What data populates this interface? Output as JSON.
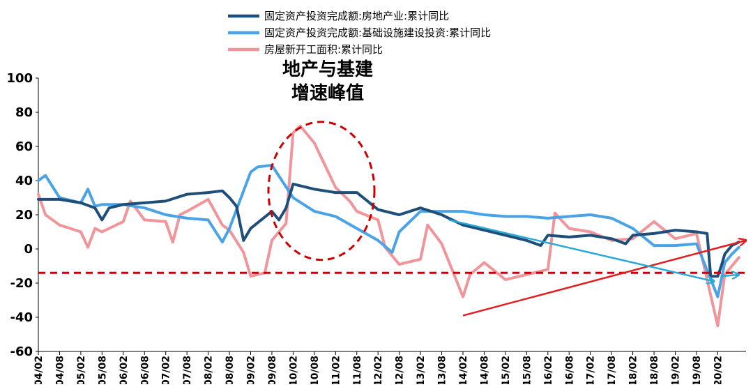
{
  "chart_data": {
    "type": "line",
    "legend": {
      "placement": "top",
      "entries": [
        {
          "label": "固定资产投资完成额:房地产业:累计同比",
          "color": "#1f4e79"
        },
        {
          "label": "固定资产投资完成额:基础设施建设投资:累计同比",
          "color": "#4aa3e6"
        },
        {
          "label": "房屋新开工面积:累计同比",
          "color": "#f0959a"
        }
      ]
    },
    "ylim": [
      -60,
      100
    ],
    "yticks": [
      -60,
      -40,
      -20,
      0,
      20,
      40,
      60,
      80,
      100
    ],
    "xlim": [
      "2004/02",
      "2020/10"
    ],
    "x_tick_labels": [
      "2004/02",
      "2004/08",
      "2005/02",
      "2005/08",
      "2006/02",
      "2006/08",
      "2007/02",
      "2007/08",
      "2008/02",
      "2008/08",
      "2009/02",
      "2009/08",
      "2010/02",
      "2010/08",
      "2011/02",
      "2011/08",
      "2012/02",
      "2012/08",
      "2013/02",
      "2013/08",
      "2014/02",
      "2014/08",
      "2015/02",
      "2015/08",
      "2016/02",
      "2016/08",
      "2017/02",
      "2017/08",
      "2018/02",
      "2018/08",
      "2019/02",
      "2019/08",
      "2020/02"
    ],
    "series": [
      {
        "name": "固定资产投资完成额:房地产业:累计同比",
        "color": "#1f4e79",
        "points": [
          [
            "2004/02",
            29
          ],
          [
            "2004/08",
            29
          ],
          [
            "2005/02",
            27
          ],
          [
            "2005/06",
            24
          ],
          [
            "2005/08",
            17
          ],
          [
            "2005/10",
            24
          ],
          [
            "2006/02",
            26
          ],
          [
            "2006/08",
            27
          ],
          [
            "2007/02",
            28
          ],
          [
            "2007/08",
            32
          ],
          [
            "2008/02",
            33
          ],
          [
            "2008/06",
            34
          ],
          [
            "2008/08",
            30
          ],
          [
            "2008/10",
            25
          ],
          [
            "2008/12",
            5
          ],
          [
            "2009/02",
            12
          ],
          [
            "2009/08",
            22
          ],
          [
            "2009/10",
            17
          ],
          [
            "2009/12",
            24
          ],
          [
            "2010/02",
            38
          ],
          [
            "2010/08",
            35
          ],
          [
            "2011/02",
            33
          ],
          [
            "2011/08",
            33
          ],
          [
            "2012/02",
            23
          ],
          [
            "2012/08",
            20
          ],
          [
            "2013/02",
            24
          ],
          [
            "2013/08",
            20
          ],
          [
            "2014/02",
            14
          ],
          [
            "2014/08",
            11
          ],
          [
            "2015/02",
            8
          ],
          [
            "2015/08",
            5
          ],
          [
            "2015/12",
            2
          ],
          [
            "2016/02",
            8
          ],
          [
            "2016/08",
            7
          ],
          [
            "2017/02",
            8
          ],
          [
            "2017/08",
            6
          ],
          [
            "2017/12",
            3
          ],
          [
            "2018/02",
            8
          ],
          [
            "2018/08",
            9
          ],
          [
            "2019/02",
            11
          ],
          [
            "2019/08",
            10
          ],
          [
            "2019/11",
            9
          ],
          [
            "2019/12",
            -16
          ],
          [
            "2020/02",
            -16
          ],
          [
            "2020/03",
            -10
          ],
          [
            "2020/04",
            -3
          ],
          [
            "2020/06",
            2
          ],
          [
            "2020/08",
            4
          ]
        ]
      },
      {
        "name": "固定资产投资完成额:基础设施建设投资:累计同比",
        "color": "#4aa3e6",
        "points": [
          [
            "2004/02",
            40
          ],
          [
            "2004/04",
            43
          ],
          [
            "2004/08",
            30
          ],
          [
            "2005/02",
            27
          ],
          [
            "2005/04",
            35
          ],
          [
            "2005/06",
            25
          ],
          [
            "2005/08",
            26
          ],
          [
            "2006/02",
            26
          ],
          [
            "2006/08",
            24
          ],
          [
            "2007/02",
            20
          ],
          [
            "2007/08",
            18
          ],
          [
            "2008/02",
            17
          ],
          [
            "2008/06",
            4
          ],
          [
            "2008/08",
            12
          ],
          [
            "2009/02",
            45
          ],
          [
            "2009/04",
            48
          ],
          [
            "2009/08",
            49
          ],
          [
            "2010/02",
            30
          ],
          [
            "2010/08",
            22
          ],
          [
            "2011/02",
            19
          ],
          [
            "2011/08",
            12
          ],
          [
            "2012/02",
            5
          ],
          [
            "2012/06",
            -2
          ],
          [
            "2012/08",
            10
          ],
          [
            "2013/02",
            22
          ],
          [
            "2013/08",
            22
          ],
          [
            "2014/02",
            22
          ],
          [
            "2014/08",
            20
          ],
          [
            "2015/02",
            19
          ],
          [
            "2015/08",
            19
          ],
          [
            "2016/02",
            18
          ],
          [
            "2016/08",
            19
          ],
          [
            "2017/02",
            20
          ],
          [
            "2017/08",
            18
          ],
          [
            "2018/02",
            12
          ],
          [
            "2018/08",
            2
          ],
          [
            "2019/02",
            2
          ],
          [
            "2019/08",
            3
          ],
          [
            "2020/02",
            -28
          ],
          [
            "2020/04",
            -8
          ],
          [
            "2020/06",
            -3
          ],
          [
            "2020/08",
            1
          ]
        ]
      },
      {
        "name": "房屋新开工面积:累计同比",
        "color": "#f0959a",
        "points": [
          [
            "2004/02",
            32
          ],
          [
            "2004/04",
            20
          ],
          [
            "2004/08",
            14
          ],
          [
            "2005/02",
            10
          ],
          [
            "2005/04",
            1
          ],
          [
            "2005/06",
            12
          ],
          [
            "2005/08",
            10
          ],
          [
            "2006/02",
            16
          ],
          [
            "2006/04",
            28
          ],
          [
            "2006/08",
            17
          ],
          [
            "2007/02",
            16
          ],
          [
            "2007/04",
            4
          ],
          [
            "2007/06",
            20
          ],
          [
            "2007/08",
            22
          ],
          [
            "2008/02",
            29
          ],
          [
            "2008/06",
            14
          ],
          [
            "2008/08",
            11
          ],
          [
            "2008/12",
            -2
          ],
          [
            "2009/02",
            -16
          ],
          [
            "2009/06",
            -14
          ],
          [
            "2009/08",
            5
          ],
          [
            "2009/12",
            15
          ],
          [
            "2010/02",
            68
          ],
          [
            "2010/04",
            72
          ],
          [
            "2010/08",
            62
          ],
          [
            "2011/02",
            36
          ],
          [
            "2011/06",
            28
          ],
          [
            "2011/08",
            22
          ],
          [
            "2012/02",
            17
          ],
          [
            "2012/04",
            1
          ],
          [
            "2012/08",
            -9
          ],
          [
            "2013/02",
            -6
          ],
          [
            "2013/04",
            14
          ],
          [
            "2013/08",
            3
          ],
          [
            "2014/02",
            -28
          ],
          [
            "2014/04",
            -15
          ],
          [
            "2014/08",
            -8
          ],
          [
            "2015/02",
            -18
          ],
          [
            "2015/08",
            -15
          ],
          [
            "2016/02",
            -12
          ],
          [
            "2016/04",
            21
          ],
          [
            "2016/08",
            12
          ],
          [
            "2017/02",
            10
          ],
          [
            "2017/08",
            5
          ],
          [
            "2018/02",
            6
          ],
          [
            "2018/08",
            16
          ],
          [
            "2019/02",
            6
          ],
          [
            "2019/08",
            9
          ],
          [
            "2020/02",
            -45
          ],
          [
            "2020/04",
            -15
          ],
          [
            "2020/06",
            -10
          ],
          [
            "2020/08",
            -5
          ]
        ]
      }
    ],
    "reference_line": {
      "y": -14,
      "color": "#cc0000",
      "style": "dashed"
    },
    "annotation": {
      "lines": [
        "地产与基建",
        "增速峰值"
      ],
      "color": "#000000"
    },
    "highlight_ellipse": {
      "center": [
        "2010/10",
        34
      ],
      "color": "#cc0000",
      "style": "dashed"
    },
    "arrows": [
      {
        "from": [
          "2014/02",
          -39
        ],
        "to": [
          "2020/10",
          5
        ],
        "color": "#e02020"
      },
      {
        "from": [
          "2013/10",
          17
        ],
        "to": [
          "2020/01",
          -19
        ],
        "color": "#29a9d8"
      },
      {
        "from": [
          "2020/03",
          -16
        ],
        "to": [
          "2020/08",
          -15
        ],
        "color": "#29a9d8"
      }
    ],
    "grid": false
  }
}
